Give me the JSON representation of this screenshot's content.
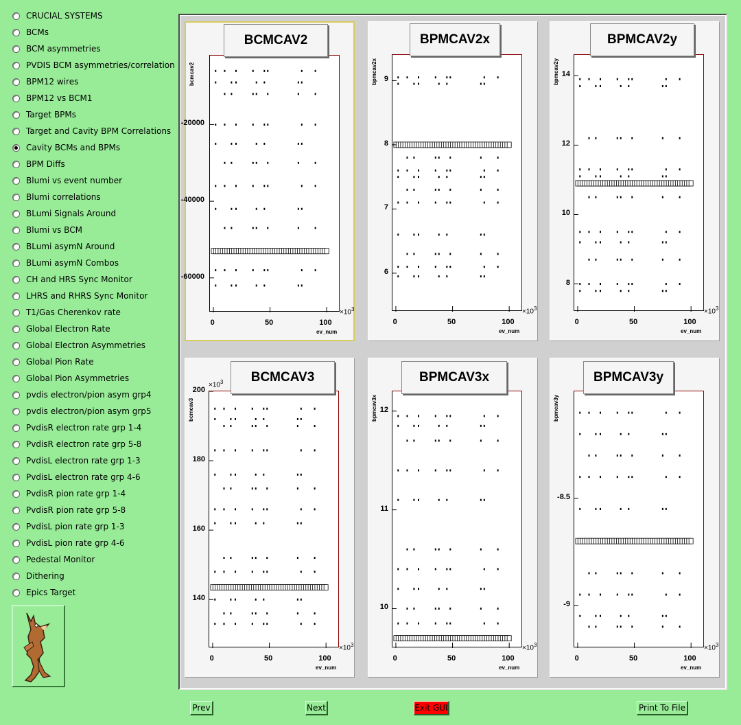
{
  "menu": {
    "selected_index": 8,
    "items": [
      "CRUCIAL SYSTEMS",
      "BCMs",
      "BCM asymmetries",
      "PVDIS BCM asymmetries/correlation",
      "BPM12 wires",
      "BPM12 vs BCM1",
      "Target BPMs",
      "Target and Cavity BPM Correlations",
      "Cavity BCMs and BPMs",
      "BPM Diffs",
      "Blumi vs event number",
      "Blumi correlations",
      "BLumi Signals Around",
      "Blumi vs BCM",
      "BLumi asymN Around",
      "BLumi asymN Combos",
      "CH and HRS Sync Monitor",
      "LHRS and RHRS Sync Monitor",
      "T1/Gas Cherenkov rate",
      "Global Electron Rate",
      "Global Electron Asymmetries",
      "Global Pion Rate",
      "Global Pion Asymmetries",
      "pvdis electron/pion asym grp4",
      "pvdis electron/pion asym grp5",
      "PvdisR electron rate grp 1-4",
      "PvdisR electron rate grp 5-8",
      "PvdisL electron rate grp 1-3",
      "PvdisL electron rate grp 4-6",
      "PvdisR pion rate grp 1-4",
      "PvdisR pion rate grp 5-8",
      "PvdisL pion rate grp 1-3",
      "PvdisL pion rate grp 4-6",
      "Pedestal Monitor",
      "Dithering",
      "Epics Target"
    ]
  },
  "logo_icon": "cartoon-coyote-icon",
  "buttons": {
    "prev": "Prev",
    "next": "Next",
    "exit": "Exit GUI",
    "print": "Print To File"
  },
  "colors": {
    "background": "#98ec98",
    "exit_button": "#ff0000",
    "frame_axis": "#8b0000"
  },
  "chart_data": [
    {
      "type": "scatter",
      "title": "BCMCAV2",
      "ylabel": "bcmcav2",
      "xlabel": "ev_num",
      "x_exponent": "×10",
      "x_exponent_power": "3",
      "xlim": [
        -3,
        112
      ],
      "ylim": [
        -69000,
        -2000
      ],
      "xticks": [
        "0",
        "50",
        "100"
      ],
      "xtick_values": [
        0,
        50,
        100
      ],
      "yticks": [
        "-20000",
        "-40000",
        "-60000"
      ],
      "ytick_values": [
        -20000,
        -40000,
        -60000
      ],
      "y_exponent": "",
      "y_exponent_power": "",
      "band_value": -53000,
      "outliers": [
        -6000,
        -9000,
        -12000,
        -20000,
        -25000,
        -30000,
        -36000,
        -42000,
        -47000,
        -58000,
        -62000
      ]
    },
    {
      "type": "scatter",
      "title": "BPMCAV2x",
      "ylabel": "bpmcav2x",
      "xlabel": "ev_num",
      "x_exponent": "×10",
      "x_exponent_power": "3",
      "xlim": [
        -3,
        112
      ],
      "ylim": [
        5.4,
        9.4
      ],
      "xticks": [
        "0",
        "50",
        "100"
      ],
      "xtick_values": [
        0,
        50,
        100
      ],
      "yticks": [
        "9",
        "8",
        "7",
        "6"
      ],
      "ytick_values": [
        9,
        8,
        7,
        6
      ],
      "y_exponent": "",
      "y_exponent_power": "",
      "band_value": 8.0,
      "outliers": [
        9.05,
        8.95,
        7.8,
        7.6,
        7.5,
        7.3,
        7.1,
        6.6,
        6.3,
        6.1,
        5.95
      ]
    },
    {
      "type": "scatter",
      "title": "BPMCAV2y",
      "ylabel": "bpmcav2y",
      "xlabel": "ev_num",
      "x_exponent": "×10",
      "x_exponent_power": "3",
      "xlim": [
        -3,
        112
      ],
      "ylim": [
        7.2,
        14.6
      ],
      "xticks": [
        "0",
        "50",
        "100"
      ],
      "xtick_values": [
        0,
        50,
        100
      ],
      "yticks": [
        "14",
        "12",
        "10",
        "8"
      ],
      "ytick_values": [
        14,
        12,
        10,
        8
      ],
      "y_exponent": "",
      "y_exponent_power": "",
      "band_value": 10.9,
      "outliers": [
        13.9,
        13.7,
        12.2,
        11.3,
        11.1,
        10.5,
        9.5,
        9.2,
        8.7,
        8.0,
        7.8
      ]
    },
    {
      "type": "scatter",
      "title": "BCMCAV3",
      "ylabel": "bcmcav3",
      "xlabel": "ev_num",
      "x_exponent": "×10",
      "x_exponent_power": "3",
      "xlim": [
        -3,
        112
      ],
      "ylim": [
        126,
        200
      ],
      "xticks": [
        "0",
        "50",
        "100"
      ],
      "xtick_values": [
        0,
        50,
        100
      ],
      "yticks": [
        "200",
        "180",
        "160",
        "140"
      ],
      "ytick_values": [
        200,
        180,
        160,
        140
      ],
      "y_exponent": "×10",
      "y_exponent_power": "3",
      "band_value": 143.5,
      "outliers": [
        195,
        192,
        190,
        183,
        176,
        172,
        166,
        162,
        152,
        148,
        140,
        136,
        133
      ]
    },
    {
      "type": "scatter",
      "title": "BPMCAV3x",
      "ylabel": "bpmcav3x",
      "xlabel": "ev_num",
      "x_exponent": "×10",
      "x_exponent_power": "3",
      "xlim": [
        -3,
        112
      ],
      "ylim": [
        9.6,
        12.2
      ],
      "xticks": [
        "0",
        "50",
        "100"
      ],
      "xtick_values": [
        0,
        50,
        100
      ],
      "yticks": [
        "12",
        "11",
        "10"
      ],
      "ytick_values": [
        12,
        11,
        10
      ],
      "y_exponent": "",
      "y_exponent_power": "",
      "band_value": 9.7,
      "outliers": [
        11.95,
        11.85,
        11.7,
        11.4,
        11.1,
        10.6,
        10.4,
        10.2,
        10.0,
        9.85
      ]
    },
    {
      "type": "scatter",
      "title": "BPMCAV3y",
      "ylabel": "bpmcav3y",
      "xlabel": "ev_num",
      "x_exponent": "×10",
      "x_exponent_power": "3",
      "xlim": [
        -3,
        112
      ],
      "ylim": [
        -9.2,
        -8.0
      ],
      "xticks": [
        "0",
        "50",
        "100"
      ],
      "xtick_values": [
        0,
        50,
        100
      ],
      "yticks": [
        "-8.5",
        "-9"
      ],
      "ytick_values": [
        -8.5,
        -9
      ],
      "y_exponent": "",
      "y_exponent_power": "",
      "band_value": -8.7,
      "outliers": [
        -8.1,
        -8.2,
        -8.3,
        -8.4,
        -8.55,
        -8.85,
        -8.95,
        -9.05,
        -9.1
      ]
    }
  ]
}
